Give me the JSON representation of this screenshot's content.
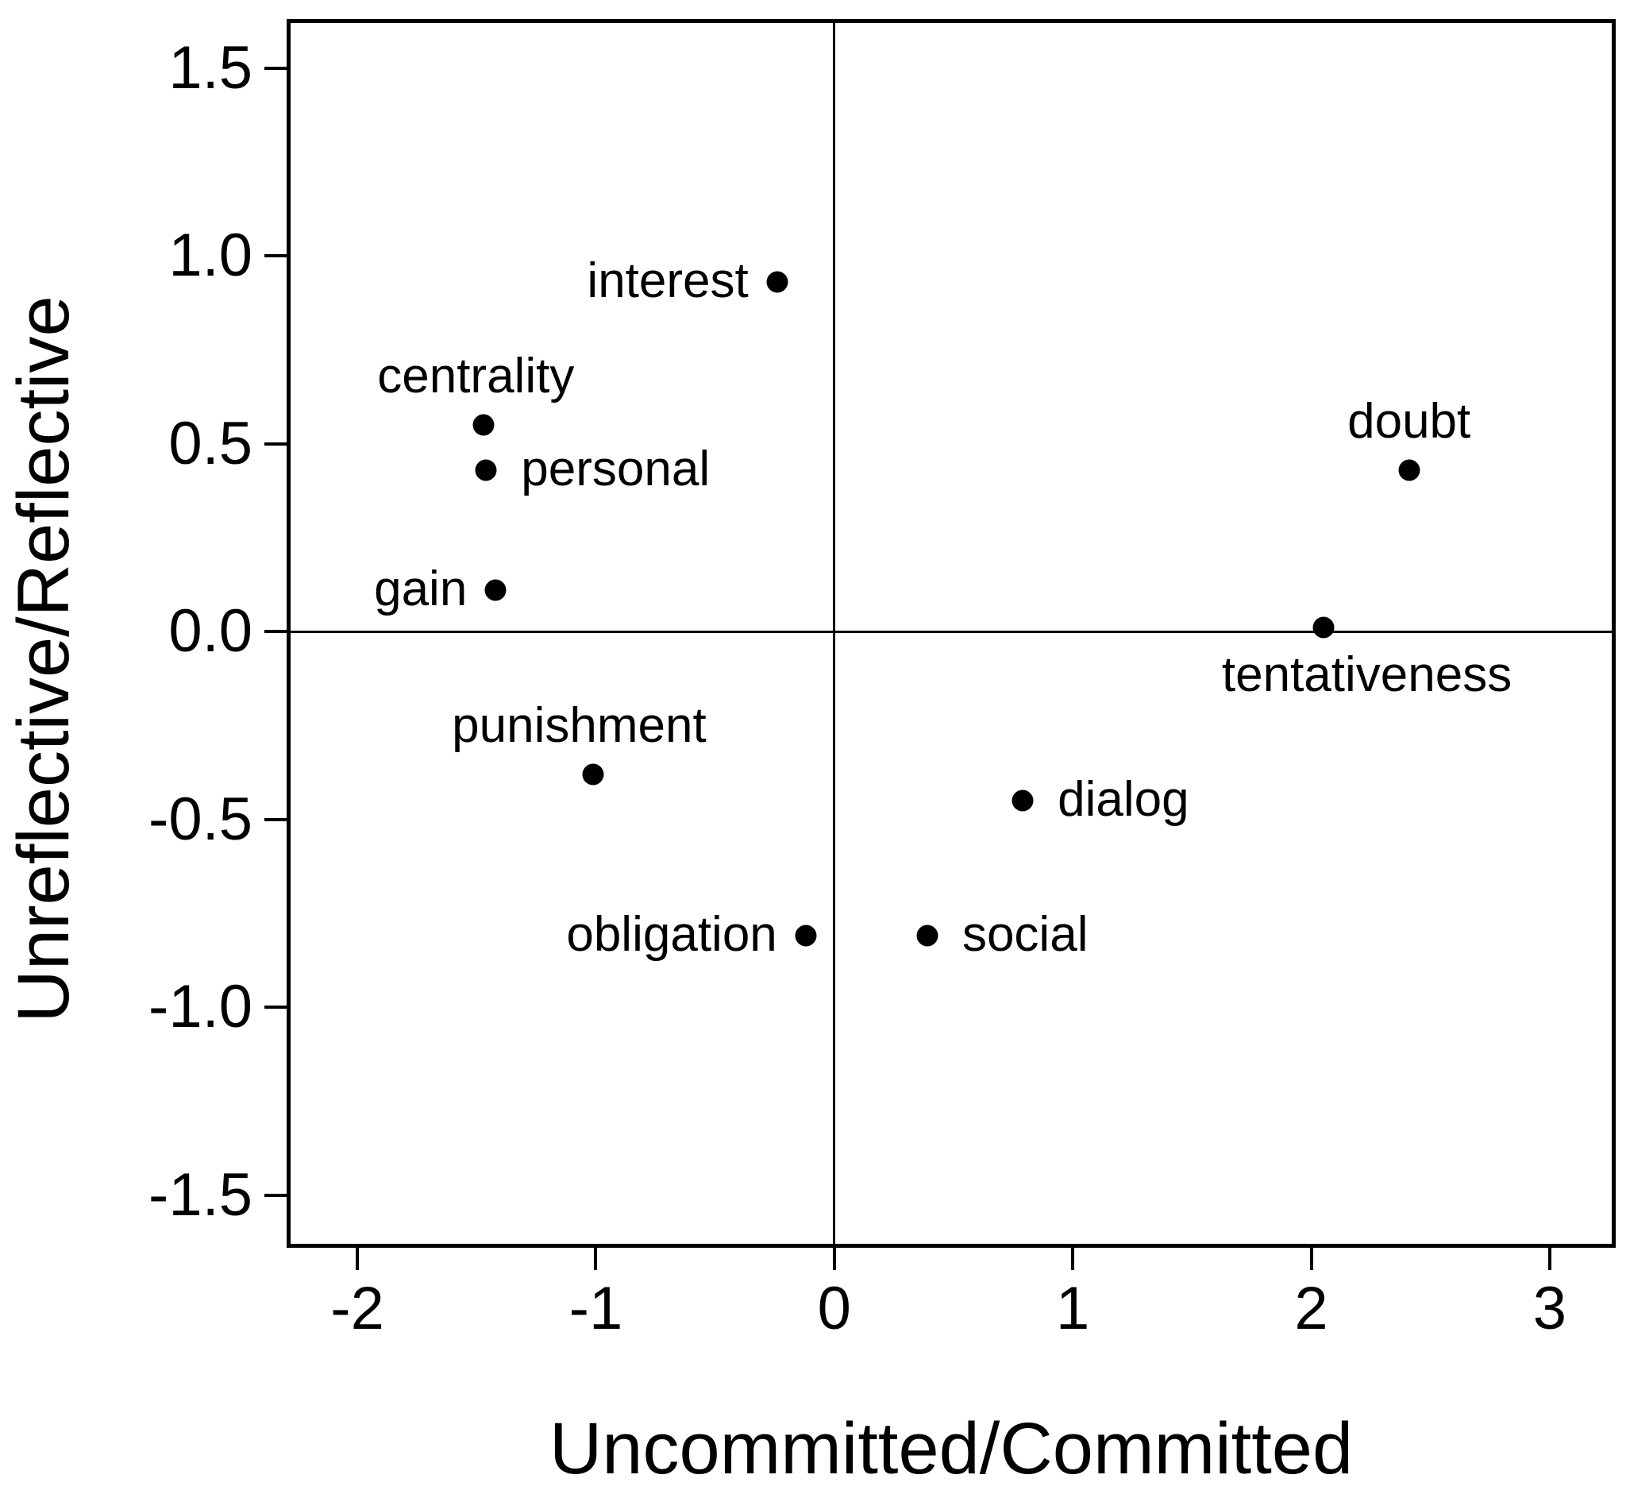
{
  "figure": {
    "background_color": "#ffffff",
    "ink_color": "#000000"
  },
  "chart_data": {
    "type": "scatter",
    "title": "",
    "xlabel": "Uncommitted/Committed",
    "ylabel": "Unreflective/Reflective",
    "xlim": [
      -2.28,
      3.26
    ],
    "ylim": [
      -1.63,
      1.62
    ],
    "x_ticks": [
      -2,
      -1,
      0,
      1,
      2,
      3
    ],
    "x_tick_labels": [
      "-2",
      "-1",
      "0",
      "1",
      "2",
      "3"
    ],
    "y_ticks": [
      1.5,
      1.0,
      0.5,
      0.0,
      -0.5,
      -1.0,
      -1.5
    ],
    "y_tick_labels": [
      "1.5",
      "1.0",
      "0.5",
      "0.0",
      "-0.5",
      "-1.0",
      "-1.5"
    ],
    "grid": false,
    "legend_position": "none",
    "reference_line_x": 0,
    "reference_line_y": 0,
    "marker_color": "#000000",
    "points": [
      {
        "label": "interest",
        "x": -0.24,
        "y": 0.93,
        "label_side": "left",
        "dx": 0
      },
      {
        "label": "centrality",
        "x": -1.47,
        "y": 0.55,
        "label_side": "above",
        "dx": -10
      },
      {
        "label": "personal",
        "x": -1.46,
        "y": 0.43,
        "label_side": "right",
        "dx": 0
      },
      {
        "label": "gain",
        "x": -1.42,
        "y": 0.11,
        "label_side": "left",
        "dx": 0
      },
      {
        "label": "doubt",
        "x": 2.41,
        "y": 0.43,
        "label_side": "above",
        "dx": 0
      },
      {
        "label": "tentativeness",
        "x": 2.05,
        "y": 0.01,
        "label_side": "below",
        "dx": 55
      },
      {
        "label": "punishment",
        "x": -1.01,
        "y": -0.38,
        "label_side": "above",
        "dx": -18
      },
      {
        "label": "dialog",
        "x": 0.79,
        "y": -0.45,
        "label_side": "right",
        "dx": 0
      },
      {
        "label": "obligation",
        "x": -0.12,
        "y": -0.81,
        "label_side": "left",
        "dx": 0
      },
      {
        "label": "social",
        "x": 0.39,
        "y": -0.81,
        "label_side": "right",
        "dx": 0
      }
    ]
  }
}
